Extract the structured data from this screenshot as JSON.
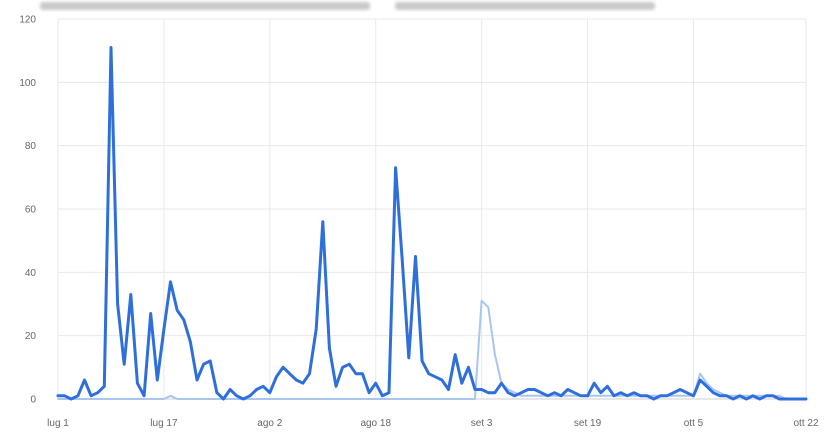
{
  "chart_data": {
    "type": "line",
    "title": "",
    "xlabel": "",
    "ylabel": "",
    "ylim": [
      0,
      120
    ],
    "yticks": [
      0,
      20,
      40,
      60,
      80,
      100,
      120
    ],
    "x_start": "lug 1",
    "x_tick_labels": [
      {
        "day": 0,
        "label": "lug 1"
      },
      {
        "day": 16,
        "label": "lug 17"
      },
      {
        "day": 32,
        "label": "ago 2"
      },
      {
        "day": 48,
        "label": "ago 18"
      },
      {
        "day": 64,
        "label": "set 3"
      },
      {
        "day": 80,
        "label": "set 19"
      },
      {
        "day": 96,
        "label": "ott 5"
      },
      {
        "day": 113,
        "label": "ott 22"
      }
    ],
    "grid": true,
    "legend": "none",
    "series": [
      {
        "color": "#2f6fdc",
        "width": 3,
        "values": [
          1,
          1,
          0,
          1,
          6,
          1,
          2,
          4,
          111,
          30,
          11,
          33,
          5,
          1,
          27,
          6,
          22,
          37,
          28,
          25,
          18,
          6,
          11,
          12,
          2,
          0,
          3,
          1,
          0,
          1,
          3,
          4,
          2,
          7,
          10,
          8,
          6,
          5,
          8,
          22,
          56,
          16,
          4,
          10,
          11,
          8,
          8,
          2,
          5,
          1,
          2,
          73,
          44,
          13,
          45,
          12,
          8,
          7,
          6,
          3,
          14,
          5,
          10,
          3,
          3,
          2,
          2,
          5,
          2,
          1,
          2,
          3,
          3,
          2,
          1,
          2,
          1,
          3,
          2,
          1,
          1,
          5,
          2,
          4,
          1,
          2,
          1,
          2,
          1,
          1,
          0,
          1,
          1,
          2,
          3,
          2,
          1,
          6,
          4,
          2,
          1,
          1,
          0,
          1,
          0,
          1,
          0,
          1,
          1,
          0,
          0,
          0,
          0,
          0
        ]
      },
      {
        "color": "#a9c6f0",
        "width": 2,
        "values": [
          0,
          0,
          0,
          0,
          0,
          0,
          0,
          0,
          0,
          0,
          0,
          0,
          0,
          0,
          0,
          0,
          0,
          1,
          0,
          0,
          0,
          0,
          0,
          0,
          0,
          0,
          0,
          0,
          0,
          0,
          0,
          0,
          0,
          0,
          0,
          0,
          0,
          0,
          0,
          0,
          0,
          0,
          0,
          0,
          0,
          0,
          0,
          0,
          0,
          0,
          0,
          0,
          0,
          0,
          0,
          0,
          0,
          0,
          0,
          0,
          0,
          0,
          0,
          0,
          31,
          29,
          14,
          5,
          3,
          2,
          1,
          1,
          1,
          1,
          1,
          1,
          1,
          1,
          1,
          1,
          1,
          1,
          1,
          1,
          1,
          1,
          1,
          1,
          1,
          1,
          1,
          1,
          1,
          1,
          1,
          1,
          1,
          8,
          5,
          3,
          2,
          1,
          1,
          1,
          1,
          1,
          1,
          1,
          1,
          1,
          0,
          0,
          0,
          0
        ]
      }
    ]
  }
}
